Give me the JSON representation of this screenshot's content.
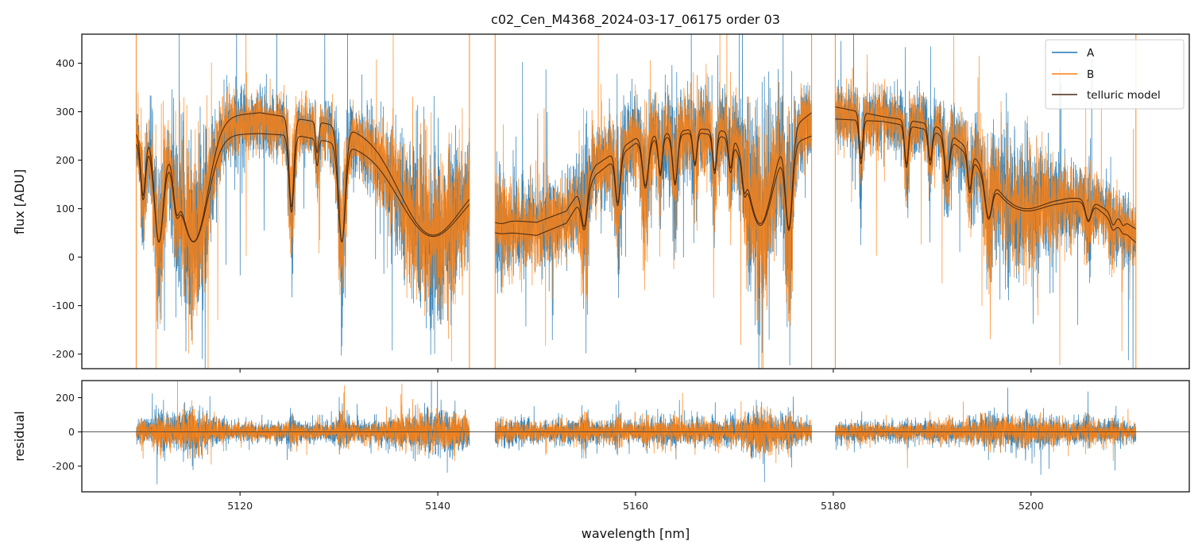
{
  "chart_data": [
    {
      "type": "line",
      "title": "c02_Cen_M4368_2024-03-17_06175  order 03",
      "xlabel": "",
      "ylabel": "flux [ADU]",
      "xlim": [
        5104,
        5216
      ],
      "ylim": [
        -230,
        460
      ],
      "yticks": [
        -200,
        -100,
        0,
        100,
        200,
        300,
        400
      ],
      "xticks": [
        5120,
        5140,
        5160,
        5180,
        5200
      ],
      "grid": false,
      "legend_position": "top-right",
      "segments": [
        [
          5109.5,
          5143.2
        ],
        [
          5145.8,
          5177.8
        ],
        [
          5180.2,
          5210.6
        ]
      ],
      "series": [
        {
          "name": "A",
          "color": "#1f77b4",
          "noise_amplitude": 110
        },
        {
          "name": "B",
          "color": "#ff7f0e",
          "noise_amplitude": 100
        },
        {
          "name": "telluric model",
          "color": "#4a2a12",
          "continuum_upper": [
            [
              5109.5,
              255
            ],
            [
              5112,
              250
            ],
            [
              5115,
              265
            ],
            [
              5118,
              290
            ],
            [
              5122,
              298
            ],
            [
              5126,
              285
            ],
            [
              5130,
              272
            ],
            [
              5134,
              262
            ],
            [
              5138,
              240
            ],
            [
              5141,
              220
            ],
            [
              5143.2,
              200
            ],
            [
              5145.8,
              80
            ],
            [
              5150,
              72
            ],
            [
              5153,
              95
            ],
            [
              5156,
              190
            ],
            [
              5160,
              245
            ],
            [
              5166,
              265
            ],
            [
              5170,
              260
            ],
            [
              5173,
              245
            ],
            [
              5176,
              270
            ],
            [
              5177.8,
              298
            ],
            [
              5180.2,
              310
            ],
            [
              5185,
              290
            ],
            [
              5190,
              275
            ],
            [
              5195,
              235
            ],
            [
              5199,
              195
            ],
            [
              5203,
              145
            ],
            [
              5206,
              120
            ],
            [
              5210.6,
              58
            ]
          ],
          "continuum_lower": [
            [
              5109.5,
              235
            ],
            [
              5112,
              228
            ],
            [
              5115,
              240
            ],
            [
              5118,
              252
            ],
            [
              5122,
              255
            ],
            [
              5126,
              250
            ],
            [
              5130,
              235
            ],
            [
              5134,
              225
            ],
            [
              5138,
              210
            ],
            [
              5141,
              195
            ],
            [
              5143.2,
              180
            ],
            [
              5145.8,
              55
            ],
            [
              5150,
              45
            ],
            [
              5153,
              70
            ],
            [
              5156,
              170
            ],
            [
              5160,
              235
            ],
            [
              5166,
              258
            ],
            [
              5170,
              245
            ],
            [
              5173,
              225
            ],
            [
              5176,
              235
            ],
            [
              5177.8,
              250
            ],
            [
              5180.2,
              285
            ],
            [
              5185,
              280
            ],
            [
              5190,
              262
            ],
            [
              5195,
              220
            ],
            [
              5199,
              185
            ],
            [
              5203,
              135
            ],
            [
              5206,
              115
            ],
            [
              5210.6,
              30
            ]
          ],
          "absorption_features": [
            [
              5110.2,
              0.55,
              0.25
            ],
            [
              5111.8,
              1.0,
              0.45
            ],
            [
              5113.6,
              0.5,
              0.3
            ],
            [
              5115.3,
              1.05,
              1.4
            ],
            [
              5125.2,
              0.7,
              0.25
            ],
            [
              5127.8,
              0.25,
              0.15
            ],
            [
              5130.3,
              1.0,
              0.35
            ],
            [
              5139.5,
              0.9,
              3.2
            ],
            [
              5146.5,
              0.1,
              0.5
            ],
            [
              5154.8,
              0.7,
              0.3
            ],
            [
              5158.2,
              0.55,
              0.25
            ],
            [
              5161.0,
              0.45,
              0.3
            ],
            [
              5162.5,
              0.35,
              0.2
            ],
            [
              5164.0,
              0.45,
              0.25
            ],
            [
              5166.0,
              0.3,
              0.2
            ],
            [
              5168.0,
              0.35,
              0.2
            ],
            [
              5169.6,
              0.3,
              0.2
            ],
            [
              5171.0,
              0.3,
              0.2
            ],
            [
              5172.6,
              0.8,
              1.2
            ],
            [
              5175.5,
              0.85,
              0.35
            ],
            [
              5182.8,
              0.35,
              0.18
            ],
            [
              5187.4,
              0.35,
              0.2
            ],
            [
              5189.8,
              0.3,
              0.2
            ],
            [
              5191.5,
              0.4,
              0.25
            ],
            [
              5193.8,
              0.4,
              0.2
            ],
            [
              5195.7,
              0.6,
              0.35
            ],
            [
              5199.0,
              0.55,
              3.0
            ],
            [
              5205.8,
              0.45,
              0.3
            ],
            [
              5208.3,
              0.35,
              0.25
            ],
            [
              5209.3,
              0.2,
              0.2
            ]
          ]
        }
      ]
    },
    {
      "type": "line",
      "title": "",
      "xlabel": "wavelength [nm]",
      "ylabel": "residual",
      "xlim": [
        5104,
        5216
      ],
      "ylim": [
        -350,
        300
      ],
      "yticks": [
        -200,
        0,
        200
      ],
      "xticks": [
        5120,
        5140,
        5160,
        5180,
        5200
      ],
      "xtick_labels": [
        "5120",
        "5140",
        "5160",
        "5180",
        "5200"
      ],
      "grid": false,
      "zero_line_color": "#808080",
      "series": [
        {
          "name": "A",
          "color": "#1f77b4",
          "noise_amplitude": 110
        },
        {
          "name": "B",
          "color": "#ff7f0e",
          "noise_amplitude": 95
        }
      ]
    }
  ]
}
